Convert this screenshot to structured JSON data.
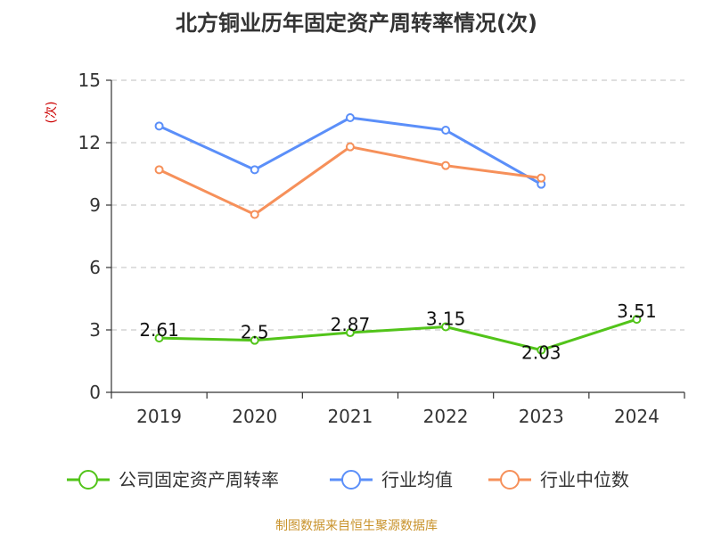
{
  "chart_data": {
    "type": "line",
    "title": "北方铜业历年固定资产周转率情况(次)",
    "ylabel": "(次)",
    "xlabel": "",
    "categories": [
      "2019",
      "2020",
      "2021",
      "2022",
      "2023",
      "2024"
    ],
    "ylim": [
      0,
      15
    ],
    "yticks": [
      0,
      3,
      6,
      9,
      12,
      15
    ],
    "grid": true,
    "legend_position": "bottom",
    "series": [
      {
        "name": "公司固定资产周转率",
        "color": "#52c41a",
        "values": [
          2.61,
          2.5,
          2.87,
          3.15,
          2.03,
          3.51
        ],
        "labels": [
          "2.61",
          "2.5",
          "2.87",
          "3.15",
          "2.03",
          "3.51"
        ]
      },
      {
        "name": "行业均值",
        "color": "#5b8ff9",
        "values": [
          12.8,
          10.7,
          13.2,
          12.6,
          10.0,
          null
        ]
      },
      {
        "name": "行业中位数",
        "color": "#f6905a",
        "values": [
          10.7,
          8.55,
          11.8,
          10.9,
          10.3,
          null
        ]
      }
    ]
  },
  "source": "制图数据来自恒生聚源数据库"
}
